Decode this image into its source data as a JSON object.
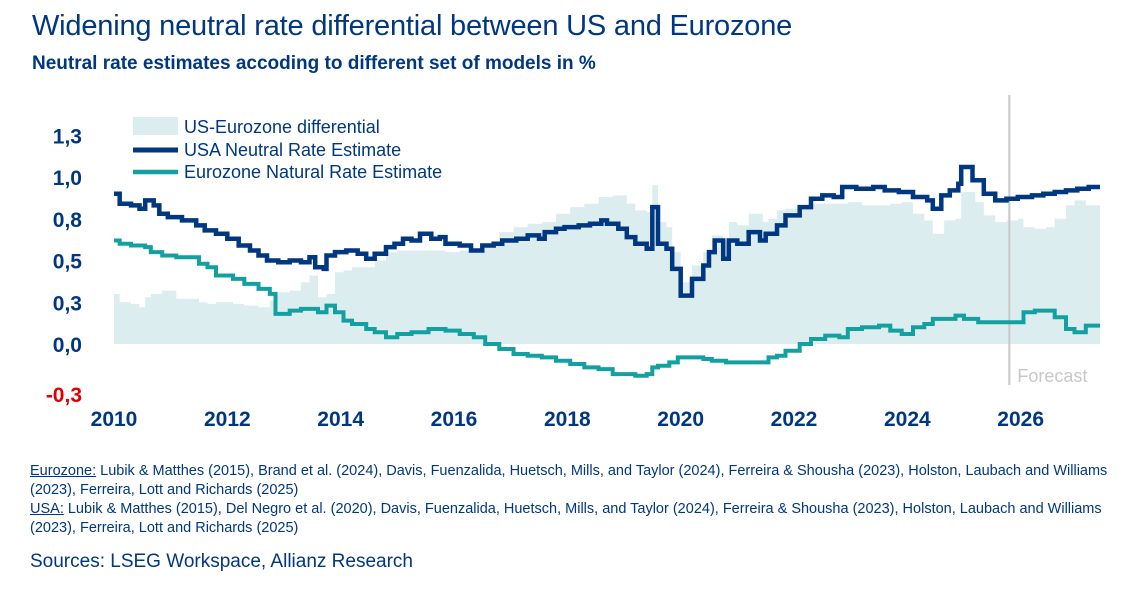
{
  "title": "Widening neutral rate differential between US and Eurozone",
  "subtitle": "Neutral rate estimates accoding to different set of models in %",
  "notes": {
    "eurozone_label": "Eurozone:",
    "eurozone_text": " Lubik & Matthes (2015), Brand et al. (2024), Davis, Fuenzalida, Huetsch, Mills, and Taylor (2024), Ferreira & Shousha (2023), Holston, Laubach and Williams (2023), Ferreira, Lott and Richards (2025)",
    "usa_label": "USA:",
    "usa_text": " Lubik & Matthes (2015),  Del Negro et al. (2020),  Davis, Fuenzalida, Huetsch, Mills, and Taylor (2024), Ferreira & Shousha (2023), Holston, Laubach and Williams (2023),  Ferreira, Lott and Richards (2025)"
  },
  "sources": "Sources: LSEG Workspace, Allianz Research",
  "chart_data": {
    "type": "area",
    "x_range": [
      2010,
      2027.4
    ],
    "ylim": [
      -0.35,
      1.35
    ],
    "y_ticks": [
      {
        "value": -0.3,
        "label": "-0,3",
        "color": "#e00000"
      },
      {
        "value": 0.0,
        "label": "0,0",
        "color": "#003781"
      },
      {
        "value": 0.25,
        "label": "0,3",
        "color": "#003781"
      },
      {
        "value": 0.5,
        "label": "0,5",
        "color": "#003781"
      },
      {
        "value": 0.75,
        "label": "0,8",
        "color": "#003781"
      },
      {
        "value": 1.0,
        "label": "1,0",
        "color": "#003781"
      },
      {
        "value": 1.25,
        "label": "1,3",
        "color": "#003781"
      }
    ],
    "x_ticks": [
      2010,
      2012,
      2014,
      2016,
      2018,
      2020,
      2022,
      2024,
      2026
    ],
    "forecast": {
      "start": 2025.8,
      "label": "Forecast"
    },
    "colors": {
      "differential": "#dcedf0",
      "usa": "#003781",
      "eurozone": "#13a0a0"
    },
    "legend": [
      "US-Eurozone differential",
      "USA Neutral Rate Estimate",
      "Eurozone Natural Rate Estimate"
    ],
    "series": [
      {
        "name": "USA Neutral Rate Estimate",
        "points": [
          [
            2010.0,
            0.9
          ],
          [
            2010.1,
            0.84
          ],
          [
            2010.3,
            0.83
          ],
          [
            2010.45,
            0.81
          ],
          [
            2010.55,
            0.86
          ],
          [
            2010.7,
            0.83
          ],
          [
            2010.8,
            0.78
          ],
          [
            2010.95,
            0.76
          ],
          [
            2011.2,
            0.74
          ],
          [
            2011.45,
            0.71
          ],
          [
            2011.6,
            0.68
          ],
          [
            2011.8,
            0.66
          ],
          [
            2012.0,
            0.63
          ],
          [
            2012.2,
            0.59
          ],
          [
            2012.4,
            0.56
          ],
          [
            2012.55,
            0.53
          ],
          [
            2012.7,
            0.5
          ],
          [
            2012.9,
            0.49
          ],
          [
            2013.1,
            0.5
          ],
          [
            2013.3,
            0.49
          ],
          [
            2013.45,
            0.52
          ],
          [
            2013.55,
            0.46
          ],
          [
            2013.7,
            0.45
          ],
          [
            2013.75,
            0.53
          ],
          [
            2013.9,
            0.55
          ],
          [
            2014.1,
            0.56
          ],
          [
            2014.3,
            0.54
          ],
          [
            2014.45,
            0.51
          ],
          [
            2014.6,
            0.54
          ],
          [
            2014.8,
            0.58
          ],
          [
            2014.95,
            0.6
          ],
          [
            2015.1,
            0.63
          ],
          [
            2015.25,
            0.62
          ],
          [
            2015.4,
            0.66
          ],
          [
            2015.6,
            0.63
          ],
          [
            2015.75,
            0.64
          ],
          [
            2015.85,
            0.6
          ],
          [
            2016.1,
            0.59
          ],
          [
            2016.3,
            0.56
          ],
          [
            2016.5,
            0.59
          ],
          [
            2016.7,
            0.6
          ],
          [
            2016.85,
            0.62
          ],
          [
            2017.1,
            0.63
          ],
          [
            2017.3,
            0.65
          ],
          [
            2017.5,
            0.63
          ],
          [
            2017.6,
            0.67
          ],
          [
            2017.8,
            0.69
          ],
          [
            2017.95,
            0.7
          ],
          [
            2018.2,
            0.71
          ],
          [
            2018.4,
            0.72
          ],
          [
            2018.6,
            0.74
          ],
          [
            2018.7,
            0.72
          ],
          [
            2018.9,
            0.69
          ],
          [
            2019.05,
            0.64
          ],
          [
            2019.2,
            0.6
          ],
          [
            2019.4,
            0.57
          ],
          [
            2019.5,
            0.82
          ],
          [
            2019.6,
            0.6
          ],
          [
            2019.75,
            0.57
          ],
          [
            2019.85,
            0.45
          ],
          [
            2020.0,
            0.29
          ],
          [
            2020.2,
            0.39
          ],
          [
            2020.4,
            0.47
          ],
          [
            2020.5,
            0.55
          ],
          [
            2020.6,
            0.62
          ],
          [
            2020.75,
            0.51
          ],
          [
            2020.85,
            0.62
          ],
          [
            2021.0,
            0.6
          ],
          [
            2021.2,
            0.67
          ],
          [
            2021.4,
            0.62
          ],
          [
            2021.5,
            0.66
          ],
          [
            2021.7,
            0.71
          ],
          [
            2021.85,
            0.77
          ],
          [
            2022.1,
            0.82
          ],
          [
            2022.3,
            0.87
          ],
          [
            2022.5,
            0.89
          ],
          [
            2022.7,
            0.88
          ],
          [
            2022.85,
            0.94
          ],
          [
            2023.1,
            0.93
          ],
          [
            2023.4,
            0.94
          ],
          [
            2023.6,
            0.92
          ],
          [
            2023.85,
            0.91
          ],
          [
            2024.1,
            0.88
          ],
          [
            2024.35,
            0.86
          ],
          [
            2024.45,
            0.81
          ],
          [
            2024.6,
            0.89
          ],
          [
            2024.75,
            0.92
          ],
          [
            2024.9,
            0.96
          ],
          [
            2024.95,
            1.06
          ],
          [
            2025.15,
            0.98
          ],
          [
            2025.35,
            0.9
          ],
          [
            2025.55,
            0.86
          ],
          [
            2025.75,
            0.87
          ],
          [
            2025.95,
            0.88
          ],
          [
            2026.2,
            0.89
          ],
          [
            2026.4,
            0.9
          ],
          [
            2026.6,
            0.91
          ],
          [
            2026.8,
            0.92
          ],
          [
            2027.0,
            0.93
          ],
          [
            2027.2,
            0.94
          ],
          [
            2027.4,
            0.94
          ]
        ]
      },
      {
        "name": "Eurozone Natural Rate Estimate",
        "points": [
          [
            2010.0,
            0.62
          ],
          [
            2010.1,
            0.6
          ],
          [
            2010.3,
            0.59
          ],
          [
            2010.45,
            0.59
          ],
          [
            2010.55,
            0.58
          ],
          [
            2010.65,
            0.55
          ],
          [
            2010.85,
            0.53
          ],
          [
            2011.1,
            0.52
          ],
          [
            2011.3,
            0.52
          ],
          [
            2011.5,
            0.48
          ],
          [
            2011.65,
            0.46
          ],
          [
            2011.8,
            0.41
          ],
          [
            2012.1,
            0.39
          ],
          [
            2012.3,
            0.36
          ],
          [
            2012.55,
            0.33
          ],
          [
            2012.75,
            0.3
          ],
          [
            2012.85,
            0.18
          ],
          [
            2013.1,
            0.2
          ],
          [
            2013.3,
            0.21
          ],
          [
            2013.45,
            0.21
          ],
          [
            2013.6,
            0.19
          ],
          [
            2013.75,
            0.23
          ],
          [
            2013.9,
            0.19
          ],
          [
            2014.05,
            0.14
          ],
          [
            2014.2,
            0.12
          ],
          [
            2014.45,
            0.09
          ],
          [
            2014.6,
            0.07
          ],
          [
            2014.8,
            0.04
          ],
          [
            2015.0,
            0.06
          ],
          [
            2015.25,
            0.07
          ],
          [
            2015.55,
            0.09
          ],
          [
            2015.85,
            0.08
          ],
          [
            2016.1,
            0.06
          ],
          [
            2016.35,
            0.04
          ],
          [
            2016.55,
            0.0
          ],
          [
            2016.8,
            -0.03
          ],
          [
            2017.05,
            -0.06
          ],
          [
            2017.3,
            -0.07
          ],
          [
            2017.55,
            -0.08
          ],
          [
            2017.8,
            -0.1
          ],
          [
            2018.05,
            -0.12
          ],
          [
            2018.3,
            -0.14
          ],
          [
            2018.55,
            -0.15
          ],
          [
            2018.8,
            -0.18
          ],
          [
            2019.2,
            -0.19
          ],
          [
            2019.4,
            -0.18
          ],
          [
            2019.5,
            -0.14
          ],
          [
            2019.6,
            -0.13
          ],
          [
            2019.8,
            -0.11
          ],
          [
            2019.95,
            -0.08
          ],
          [
            2020.3,
            -0.08
          ],
          [
            2020.4,
            -0.09
          ],
          [
            2020.55,
            -0.1
          ],
          [
            2020.8,
            -0.11
          ],
          [
            2021.2,
            -0.11
          ],
          [
            2021.45,
            -0.11
          ],
          [
            2021.55,
            -0.08
          ],
          [
            2021.7,
            -0.07
          ],
          [
            2021.85,
            -0.04
          ],
          [
            2022.1,
            0.0
          ],
          [
            2022.3,
            0.03
          ],
          [
            2022.55,
            0.05
          ],
          [
            2022.8,
            0.04
          ],
          [
            2022.95,
            0.09
          ],
          [
            2023.2,
            0.1
          ],
          [
            2023.5,
            0.11
          ],
          [
            2023.7,
            0.08
          ],
          [
            2023.9,
            0.06
          ],
          [
            2024.1,
            0.1
          ],
          [
            2024.3,
            0.12
          ],
          [
            2024.45,
            0.15
          ],
          [
            2024.65,
            0.15
          ],
          [
            2024.85,
            0.17
          ],
          [
            2025.0,
            0.15
          ],
          [
            2025.25,
            0.13
          ],
          [
            2025.5,
            0.13
          ],
          [
            2025.75,
            0.13
          ],
          [
            2025.95,
            0.13
          ],
          [
            2026.05,
            0.19
          ],
          [
            2026.25,
            0.2
          ],
          [
            2026.45,
            0.2
          ],
          [
            2026.6,
            0.16
          ],
          [
            2026.8,
            0.09
          ],
          [
            2026.95,
            0.07
          ],
          [
            2027.15,
            0.11
          ],
          [
            2027.3,
            0.11
          ],
          [
            2027.4,
            0.11
          ]
        ]
      },
      {
        "name": "US-Eurozone differential",
        "points": [
          [
            2010.0,
            0.3
          ],
          [
            2010.1,
            0.25
          ],
          [
            2010.3,
            0.24
          ],
          [
            2010.45,
            0.22
          ],
          [
            2010.55,
            0.28
          ],
          [
            2010.65,
            0.3
          ],
          [
            2010.85,
            0.32
          ],
          [
            2011.1,
            0.27
          ],
          [
            2011.3,
            0.27
          ],
          [
            2011.5,
            0.25
          ],
          [
            2011.65,
            0.24
          ],
          [
            2011.8,
            0.25
          ],
          [
            2012.1,
            0.24
          ],
          [
            2012.3,
            0.23
          ],
          [
            2012.55,
            0.22
          ],
          [
            2012.75,
            0.26
          ],
          [
            2012.85,
            0.31
          ],
          [
            2013.1,
            0.32
          ],
          [
            2013.3,
            0.37
          ],
          [
            2013.45,
            0.41
          ],
          [
            2013.6,
            0.28
          ],
          [
            2013.75,
            0.3
          ],
          [
            2013.9,
            0.43
          ],
          [
            2014.05,
            0.44
          ],
          [
            2014.2,
            0.46
          ],
          [
            2014.45,
            0.46
          ],
          [
            2014.6,
            0.5
          ],
          [
            2014.8,
            0.55
          ],
          [
            2015.0,
            0.56
          ],
          [
            2015.25,
            0.56
          ],
          [
            2015.55,
            0.56
          ],
          [
            2015.85,
            0.55
          ],
          [
            2016.1,
            0.56
          ],
          [
            2016.35,
            0.56
          ],
          [
            2016.55,
            0.6
          ],
          [
            2016.8,
            0.67
          ],
          [
            2017.05,
            0.7
          ],
          [
            2017.3,
            0.72
          ],
          [
            2017.55,
            0.73
          ],
          [
            2017.8,
            0.78
          ],
          [
            2018.05,
            0.82
          ],
          [
            2018.3,
            0.84
          ],
          [
            2018.55,
            0.88
          ],
          [
            2018.8,
            0.89
          ],
          [
            2019.05,
            0.84
          ],
          [
            2019.2,
            0.8
          ],
          [
            2019.4,
            0.79
          ],
          [
            2019.5,
            0.95
          ],
          [
            2019.6,
            0.73
          ],
          [
            2019.75,
            0.7
          ],
          [
            2019.85,
            0.55
          ],
          [
            2020.0,
            0.37
          ],
          [
            2020.2,
            0.47
          ],
          [
            2020.4,
            0.55
          ],
          [
            2020.55,
            0.65
          ],
          [
            2020.75,
            0.62
          ],
          [
            2020.85,
            0.73
          ],
          [
            2021.0,
            0.71
          ],
          [
            2021.2,
            0.78
          ],
          [
            2021.45,
            0.73
          ],
          [
            2021.55,
            0.75
          ],
          [
            2021.7,
            0.8
          ],
          [
            2021.85,
            0.81
          ],
          [
            2022.1,
            0.82
          ],
          [
            2022.3,
            0.84
          ],
          [
            2022.55,
            0.84
          ],
          [
            2022.8,
            0.84
          ],
          [
            2022.95,
            0.85
          ],
          [
            2023.2,
            0.83
          ],
          [
            2023.5,
            0.83
          ],
          [
            2023.7,
            0.84
          ],
          [
            2023.9,
            0.85
          ],
          [
            2024.1,
            0.78
          ],
          [
            2024.3,
            0.74
          ],
          [
            2024.45,
            0.66
          ],
          [
            2024.65,
            0.74
          ],
          [
            2024.85,
            0.75
          ],
          [
            2024.95,
            0.91
          ],
          [
            2025.2,
            0.85
          ],
          [
            2025.35,
            0.77
          ],
          [
            2025.55,
            0.73
          ],
          [
            2025.75,
            0.74
          ],
          [
            2025.95,
            0.75
          ],
          [
            2026.05,
            0.7
          ],
          [
            2026.25,
            0.69
          ],
          [
            2026.45,
            0.7
          ],
          [
            2026.6,
            0.75
          ],
          [
            2026.8,
            0.83
          ],
          [
            2026.95,
            0.86
          ],
          [
            2027.15,
            0.83
          ],
          [
            2027.3,
            0.83
          ],
          [
            2027.4,
            0.83
          ]
        ]
      }
    ]
  }
}
